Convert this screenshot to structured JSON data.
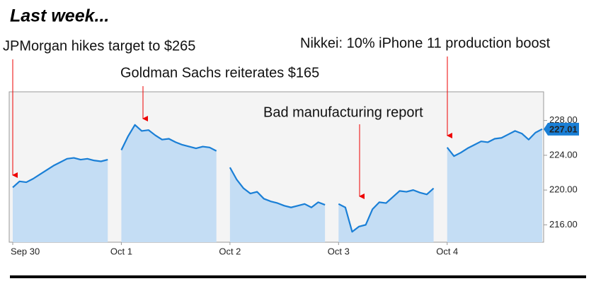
{
  "chart_data": {
    "type": "line",
    "title": "Last week...",
    "annotations": [
      "JPMorgan hikes target to $265",
      "Goldman Sachs reiterates $165",
      "Bad manufacturing report",
      "Nikkei: 10% iPhone 11 production boost"
    ],
    "categories": [
      "Sep 30",
      null,
      null,
      null,
      null,
      null,
      null,
      null,
      null,
      null,
      null,
      null,
      null,
      null,
      null,
      null,
      "Oct 1",
      null,
      null,
      null,
      null,
      null,
      null,
      null,
      null,
      null,
      null,
      null,
      null,
      null,
      null,
      null,
      "Oct 2",
      null,
      null,
      null,
      null,
      null,
      null,
      null,
      null,
      null,
      null,
      null,
      null,
      null,
      null,
      null,
      "Oct 3",
      null,
      null,
      null,
      null,
      null,
      null,
      null,
      null,
      null,
      null,
      null,
      null,
      null,
      null,
      null,
      "Oct 4",
      null,
      null,
      null,
      null,
      null,
      null,
      null,
      null,
      null,
      null,
      null,
      null,
      null,
      null
    ],
    "series": [
      {
        "color": "#1a7fd6",
        "fill": "#c4ddf4",
        "values": [
          220.3,
          221.0,
          220.9,
          221.3,
          221.8,
          222.3,
          222.8,
          223.2,
          223.6,
          223.7,
          223.5,
          223.6,
          223.4,
          223.3,
          223.5,
          null,
          224.6,
          226.2,
          227.5,
          226.8,
          226.9,
          226.3,
          225.8,
          225.9,
          225.5,
          225.2,
          225.0,
          224.8,
          225.0,
          224.9,
          224.5,
          null,
          222.6,
          221.2,
          220.2,
          219.6,
          219.8,
          219.0,
          218.7,
          218.5,
          218.2,
          218.0,
          218.2,
          218.4,
          218.0,
          218.6,
          218.3,
          null,
          218.4,
          218.0,
          215.2,
          215.8,
          216.0,
          217.8,
          218.6,
          218.5,
          219.2,
          219.9,
          219.8,
          220.0,
          219.7,
          219.5,
          220.2,
          null,
          224.9,
          223.9,
          224.3,
          224.8,
          225.2,
          225.6,
          225.5,
          225.9,
          226.0,
          226.4,
          226.8,
          226.5,
          225.8,
          226.6,
          227.01
        ]
      }
    ],
    "ylim": [
      214,
      231.3
    ],
    "yticks": [
      {
        "value": 216,
        "label": "216.00"
      },
      {
        "value": 220,
        "label": "220.00"
      },
      {
        "value": 224,
        "label": "224.00"
      },
      {
        "value": 228,
        "label": "228.00"
      }
    ],
    "grid": false
  }
}
